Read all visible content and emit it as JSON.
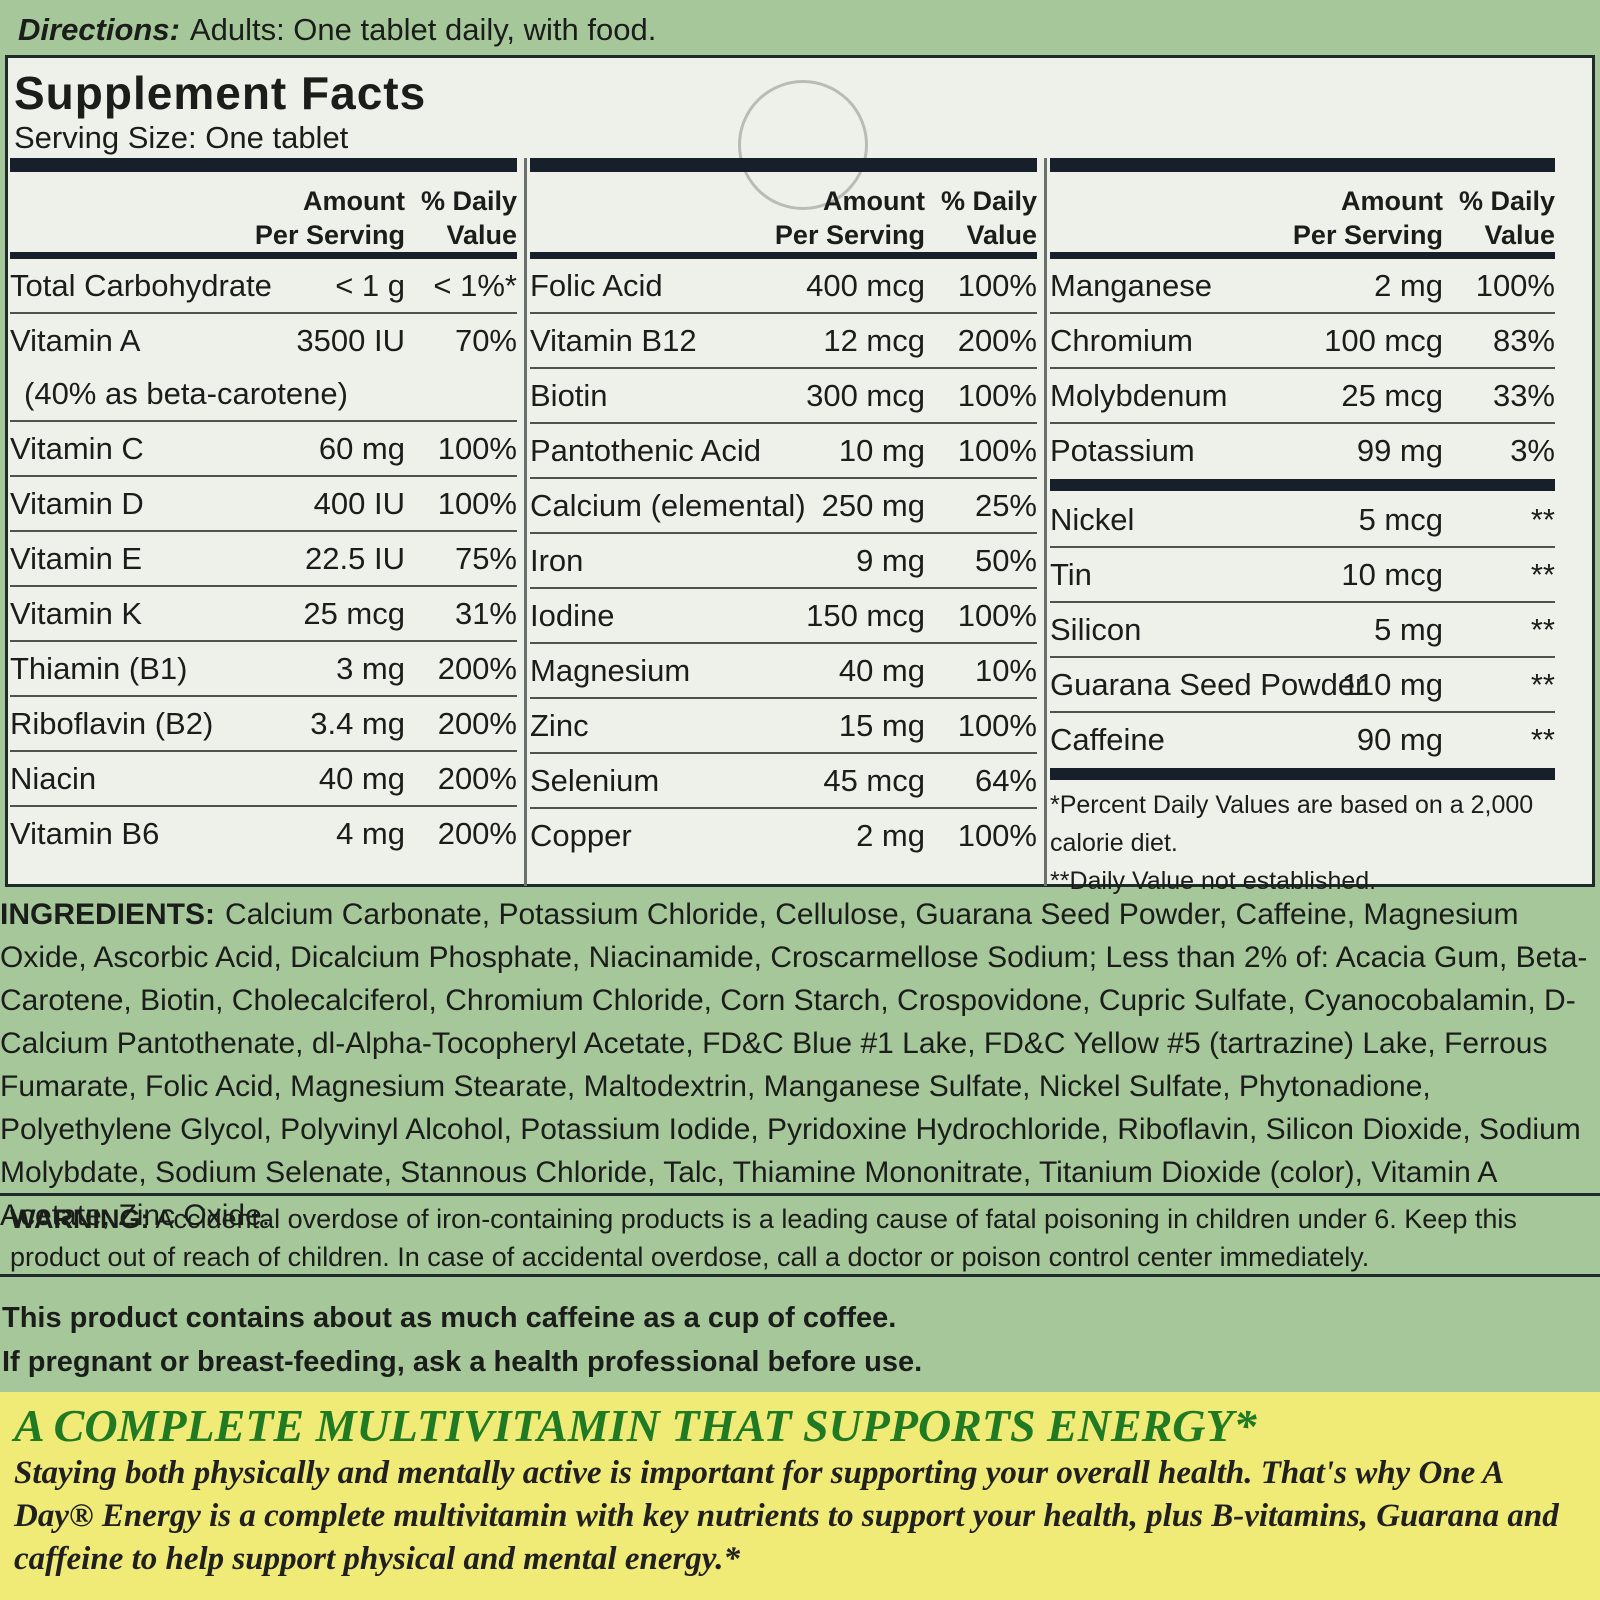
{
  "directions": {
    "label": "Directions:",
    "text": "Adults: One tablet daily, with food."
  },
  "facts": {
    "title": "Supplement Facts",
    "serving_size": "Serving Size: One tablet",
    "header_amount": "Amount\nPer Serving",
    "header_dv": "% Daily\nValue",
    "col1": [
      {
        "name": "Total Carbohydrate",
        "amount": "< 1 g",
        "dv": "< 1%*"
      },
      {
        "name": "Vitamin A",
        "amount": "3500 IU",
        "dv": "70%"
      },
      {
        "name": "(40% as beta-carotene)",
        "amount": "",
        "dv": ""
      },
      {
        "name": "Vitamin C",
        "amount": "60 mg",
        "dv": "100%"
      },
      {
        "name": "Vitamin D",
        "amount": "400 IU",
        "dv": "100%"
      },
      {
        "name": "Vitamin E",
        "amount": "22.5 IU",
        "dv": "75%"
      },
      {
        "name": "Vitamin K",
        "amount": "25 mcg",
        "dv": "31%"
      },
      {
        "name": "Thiamin (B1)",
        "amount": "3 mg",
        "dv": "200%"
      },
      {
        "name": "Riboflavin (B2)",
        "amount": "3.4 mg",
        "dv": "200%"
      },
      {
        "name": "Niacin",
        "amount": "40 mg",
        "dv": "200%"
      },
      {
        "name": "Vitamin B6",
        "amount": "4 mg",
        "dv": "200%"
      }
    ],
    "col2": [
      {
        "name": "Folic Acid",
        "amount": "400 mcg",
        "dv": "100%"
      },
      {
        "name": "Vitamin B12",
        "amount": "12 mcg",
        "dv": "200%"
      },
      {
        "name": "Biotin",
        "amount": "300 mcg",
        "dv": "100%"
      },
      {
        "name": "Pantothenic Acid",
        "amount": "10 mg",
        "dv": "100%"
      },
      {
        "name": "Calcium (elemental)",
        "amount": "250 mg",
        "dv": "25%"
      },
      {
        "name": "Iron",
        "amount": "9 mg",
        "dv": "50%"
      },
      {
        "name": "Iodine",
        "amount": "150 mcg",
        "dv": "100%"
      },
      {
        "name": "Magnesium",
        "amount": "40 mg",
        "dv": "10%"
      },
      {
        "name": "Zinc",
        "amount": "15 mg",
        "dv": "100%"
      },
      {
        "name": "Selenium",
        "amount": "45 mcg",
        "dv": "64%"
      },
      {
        "name": "Copper",
        "amount": "2 mg",
        "dv": "100%"
      }
    ],
    "col3a": [
      {
        "name": "Manganese",
        "amount": "2 mg",
        "dv": "100%"
      },
      {
        "name": "Chromium",
        "amount": "100 mcg",
        "dv": "83%"
      },
      {
        "name": "Molybdenum",
        "amount": "25 mcg",
        "dv": "33%"
      },
      {
        "name": "Potassium",
        "amount": "99 mg",
        "dv": "3%"
      }
    ],
    "col3b": [
      {
        "name": "Nickel",
        "amount": "5 mcg",
        "dv": "**"
      },
      {
        "name": "Tin",
        "amount": "10 mcg",
        "dv": "**"
      },
      {
        "name": "Silicon",
        "amount": "5 mg",
        "dv": "**"
      },
      {
        "name": "Guarana Seed Powder",
        "amount": "110 mg",
        "dv": "**"
      },
      {
        "name": "Caffeine",
        "amount": "90 mg",
        "dv": "**"
      }
    ],
    "footnote1": "*Percent Daily Values are based on a 2,000 calorie diet.",
    "footnote2": "**Daily Value not established."
  },
  "ingredients": {
    "label": "INGREDIENTS:",
    "text": "Calcium Carbonate, Potassium Chloride, Cellulose, Guarana Seed Powder, Caffeine, Magnesium Oxide, Ascorbic Acid, Dicalcium Phosphate, Niacinamide, Croscarmellose Sodium; Less than 2% of: Acacia Gum, Beta-Carotene, Biotin, Cholecalciferol, Chromium Chloride, Corn Starch, Crospovidone, Cupric Sulfate, Cyanocobalamin, D-Calcium Pantothenate, dl-Alpha-Tocopheryl Acetate, FD&C Blue #1 Lake, FD&C Yellow #5 (tartrazine) Lake, Ferrous Fumarate, Folic Acid, Magnesium Stearate, Maltodextrin, Manganese Sulfate, Nickel Sulfate, Phytonadione, Polyethylene Glycol, Polyvinyl Alcohol, Potassium Iodide, Pyridoxine Hydrochloride, Riboflavin, Silicon Dioxide, Sodium Molybdate, Sodium Selenate, Stannous Chloride, Talc, Thiamine Mononitrate, Titanium Dioxide (color), Vitamin A Acetate, Zinc Oxide."
  },
  "warning": {
    "label": "WARNING:",
    "text": "Accidental overdose of iron-containing products is a leading cause of fatal poisoning in children under 6. Keep this product out of reach of children. In case of accidental overdose, call a doctor or poison control center immediately."
  },
  "caffeine_note": {
    "line1": "This product contains about as much caffeine as a cup of coffee.",
    "line2": "If pregnant or breast-feeding, ask a health professional before use."
  },
  "energy": {
    "headline": "A COMPLETE MULTIVITAMIN THAT SUPPORTS ENERGY*",
    "body": "Staying both physically and mentally active is important for supporting your overall health. That's why One A Day® Energy is a complete multivitamin with key nutrients to support your health, plus B-vitamins, Guarana and caffeine to help support physical and mental energy.*"
  },
  "colors": {
    "panel_bg": "#eef0ea",
    "label_green": "#a6c79a",
    "yellow_band": "#f0ea76",
    "headline_green": "#1f7a23"
  }
}
